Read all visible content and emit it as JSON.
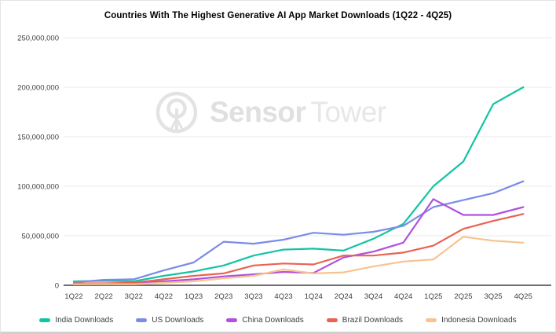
{
  "page": {
    "title": "Countries With The Highest Generative AI App Market Downloads (1Q22 - 4Q25)"
  },
  "watermark": {
    "brand_bold": "Sensor",
    "brand_light": "Tower",
    "logo_color": "#e3e3e3"
  },
  "chart_data": {
    "type": "line",
    "title": "Countries With The Highest Generative AI App Market Downloads (1Q22 - 4Q25)",
    "xlabel": "",
    "ylabel": "",
    "grid": true,
    "legend_position": "bottom",
    "ylim": [
      0,
      250000000
    ],
    "yticks": [
      0,
      50000000,
      100000000,
      150000000,
      200000000,
      250000000
    ],
    "ytick_labels": [
      "0",
      "50,000,000",
      "100,000,000",
      "150,000,000",
      "200,000,000",
      "250,000,000"
    ],
    "categories": [
      "1Q22",
      "2Q22",
      "3Q22",
      "4Q22",
      "1Q23",
      "2Q23",
      "3Q23",
      "4Q23",
      "1Q24",
      "2Q24",
      "3Q24",
      "4Q24",
      "1Q25",
      "2Q25",
      "3Q25",
      "4Q25"
    ],
    "series": [
      {
        "name": "India Downloads",
        "color": "#12c4a3",
        "values": [
          4000000,
          4500000,
          4000000,
          9500000,
          14000000,
          20000000,
          30000000,
          36000000,
          37000000,
          35000000,
          47000000,
          62000000,
          100000000,
          125000000,
          183000000,
          200000000
        ]
      },
      {
        "name": "US Downloads",
        "color": "#7a8ce8",
        "values": [
          3000000,
          5500000,
          6000000,
          15000000,
          23000000,
          44000000,
          42000000,
          46000000,
          53000000,
          51000000,
          54000000,
          60000000,
          79000000,
          86000000,
          93000000,
          105000000
        ]
      },
      {
        "name": "China Downloads",
        "color": "#b050e0",
        "values": [
          1500000,
          1500000,
          2000000,
          4000000,
          6000000,
          9000000,
          11000000,
          13500000,
          12500000,
          28000000,
          34000000,
          43000000,
          87000000,
          71000000,
          71000000,
          79000000
        ]
      },
      {
        "name": "Brazil Downloads",
        "color": "#e96352",
        "values": [
          2000000,
          2000000,
          2500000,
          6000000,
          9500000,
          12000000,
          20000000,
          22000000,
          21000000,
          30000000,
          30000000,
          33000000,
          40000000,
          57000000,
          65000000,
          72000000
        ]
      },
      {
        "name": "Indonesia Downloads",
        "color": "#f7c38e",
        "values": [
          1000000,
          1200000,
          1000000,
          2500000,
          4000000,
          7000000,
          9500000,
          16000000,
          12000000,
          13000000,
          19000000,
          24000000,
          26000000,
          49000000,
          45000000,
          43000000
        ]
      }
    ]
  }
}
